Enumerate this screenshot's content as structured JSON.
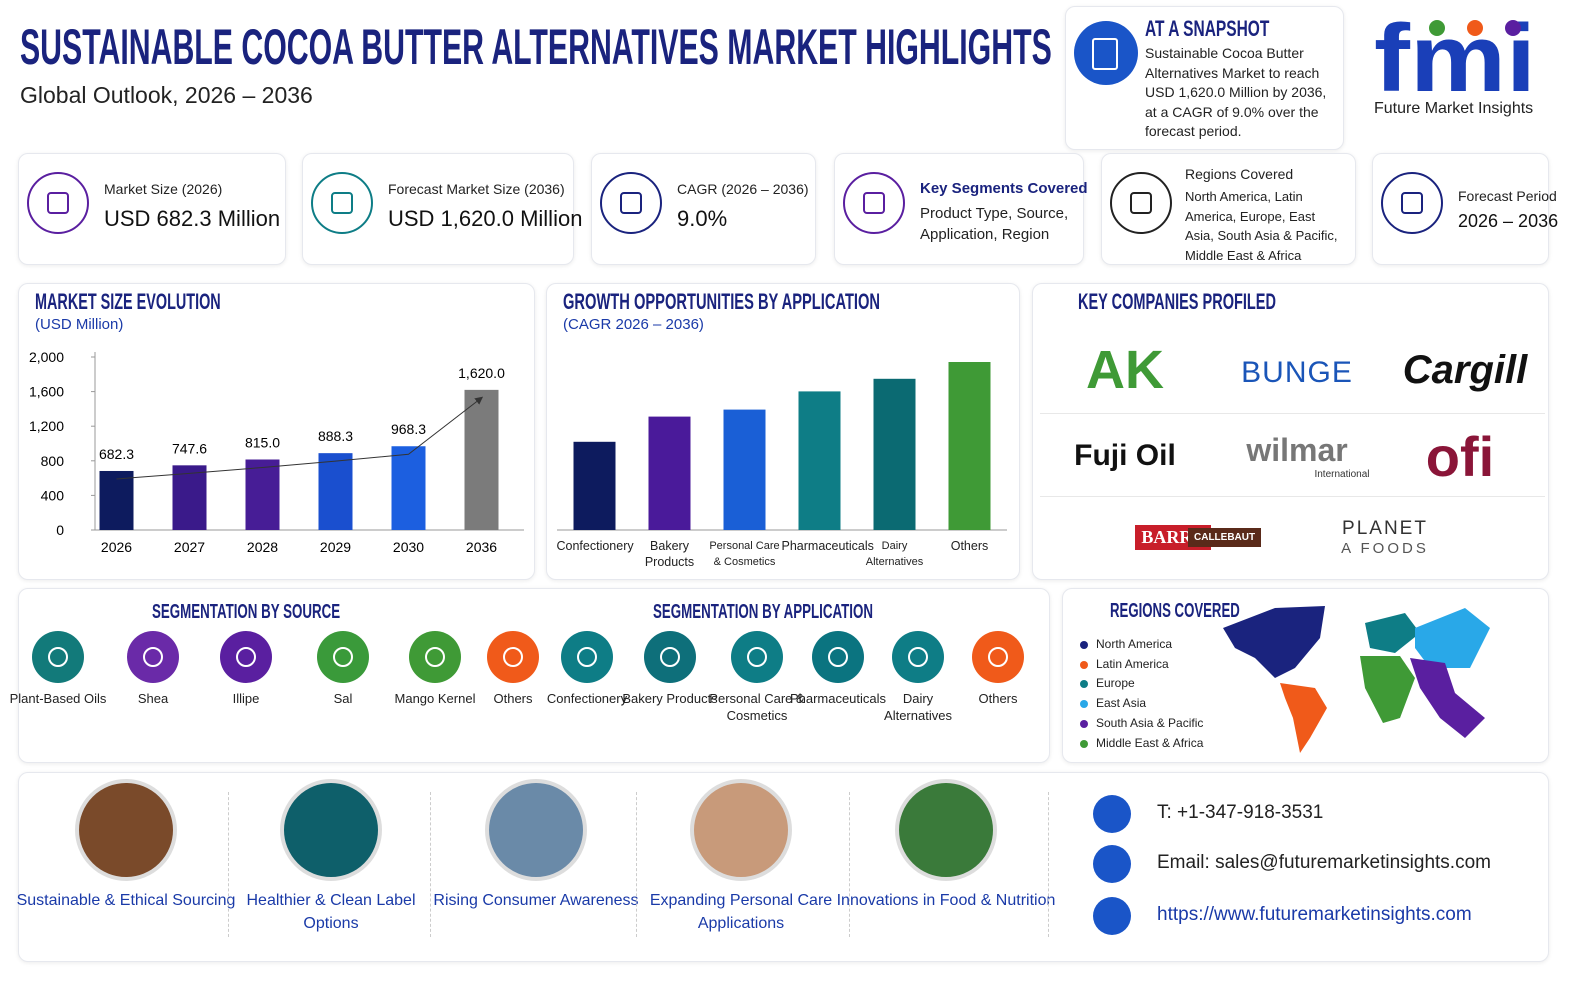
{
  "header": {
    "title": "SUSTAINABLE COCOA BUTTER ALTERNATIVES MARKET HIGHLIGHTS",
    "subtitle": "Global Outlook, 2026 – 2036"
  },
  "snapshot": {
    "title": "AT A SNAPSHOT",
    "text": "Sustainable Cocoa Butter Alternatives Market to reach USD 1,620.0 Million by 2036, at a CAGR of 9.0% over the forecast period."
  },
  "logo": {
    "mark": "fmi",
    "name": "Future Market Insights"
  },
  "stats": [
    {
      "label": "Market Size (2026)",
      "value": "USD 682.3 Million"
    },
    {
      "label": "Forecast Market Size (2036)",
      "value": "USD 1,620.0 Million"
    },
    {
      "label": "CAGR (2026 – 2036)",
      "value": "9.0%"
    },
    {
      "label": "Key Segments Covered",
      "value": "Product Type, Source, Application, Region"
    },
    {
      "label": "Regions Covered",
      "value": "North America, Latin America, Europe, East Asia, South Asia & Pacific, Middle East & Africa"
    },
    {
      "label": "Forecast Period",
      "value": "2026 – 2036"
    }
  ],
  "chart_data": [
    {
      "type": "bar",
      "title": "MARKET SIZE EVOLUTION",
      "subtitle": "(USD Million)",
      "categories": [
        "2026",
        "2027",
        "2028",
        "2029",
        "2030",
        "2036"
      ],
      "values": [
        682.3,
        747.6,
        815.0,
        888.3,
        968.3,
        1620.0
      ],
      "value_labels": [
        "682.3",
        "747.6",
        "815.0",
        "888.3",
        "968.3",
        "1,620.0"
      ],
      "colors": [
        "#0d1b5e",
        "#3a1a8a",
        "#471d96",
        "#1a4fcf",
        "#1c5fe0",
        "#7b7b7b"
      ],
      "ylim": [
        0,
        2000
      ],
      "yticks": [
        0,
        400,
        800,
        {
          "value": 1200,
          "label": "1,200"
        },
        {
          "value": 1600,
          "label": "1,600"
        },
        {
          "value": 2000,
          "label": "2,000"
        }
      ]
    },
    {
      "type": "bar",
      "title": "GROWTH OPPORTUNITIES BY APPLICATION",
      "subtitle": "(CAGR 2026 – 2036)",
      "categories": [
        "Confectionery",
        "Bakery Products",
        "Personal Care & Cosmetics",
        "Pharmaceuticals",
        "Dairy Alternatives",
        "Others"
      ],
      "values": [
        6.3,
        8.1,
        8.6,
        9.9,
        10.8,
        12.0
      ],
      "colors": [
        "#0d1b5e",
        "#4a1a9a",
        "#1a5fd6",
        "#0e7d86",
        "#0b6a72",
        "#3f9a36"
      ]
    }
  ],
  "companies": {
    "title": "KEY COMPANIES PROFILED",
    "items": [
      {
        "name": "AK"
      },
      {
        "name": "BUNGE"
      },
      {
        "name": "Cargill"
      },
      {
        "name": "Fuji Oil"
      },
      {
        "name": "wilmar",
        "sub": "International"
      },
      {
        "name": "ofi"
      },
      {
        "name": "BARRY",
        "sub": "CALLEBAUT"
      },
      {
        "name": "PLANET",
        "sub": "A FOODS"
      }
    ]
  },
  "source_segments": {
    "title": "SEGMENTATION BY SOURCE",
    "items": [
      "Plant-Based Oils",
      "Shea",
      "Illipe",
      "Sal",
      "Mango Kernel",
      "Others"
    ]
  },
  "application_segments": {
    "title": "SEGMENTATION BY APPLICATION",
    "items": [
      "Confectionery",
      "Bakery Products",
      "Personal Care & Cosmetics",
      "Pharmaceuticals",
      "Dairy Alternatives",
      "Others"
    ]
  },
  "regions": {
    "title": "REGIONS COVERED",
    "items": [
      {
        "name": "North America",
        "color": "#1a237e"
      },
      {
        "name": "Latin America",
        "color": "#f05a1a"
      },
      {
        "name": "Europe",
        "color": "#0e7d86"
      },
      {
        "name": "East Asia",
        "color": "#29a8e8"
      },
      {
        "name": "South Asia & Pacific",
        "color": "#5a1fa0"
      },
      {
        "name": "Middle East & Africa",
        "color": "#3f9a36"
      }
    ]
  },
  "drivers": [
    "Sustainable & Ethical Sourcing",
    "Healthier & Clean Label Options",
    "Rising Consumer Awareness",
    "Expanding Personal Care Applications",
    "Innovations in Food & Nutrition"
  ],
  "contact": {
    "phone": "T: +1-347-918-3531",
    "email": "Email: sales@futuremarketinsights.com",
    "website": "https://www.futuremarketinsights.com"
  }
}
